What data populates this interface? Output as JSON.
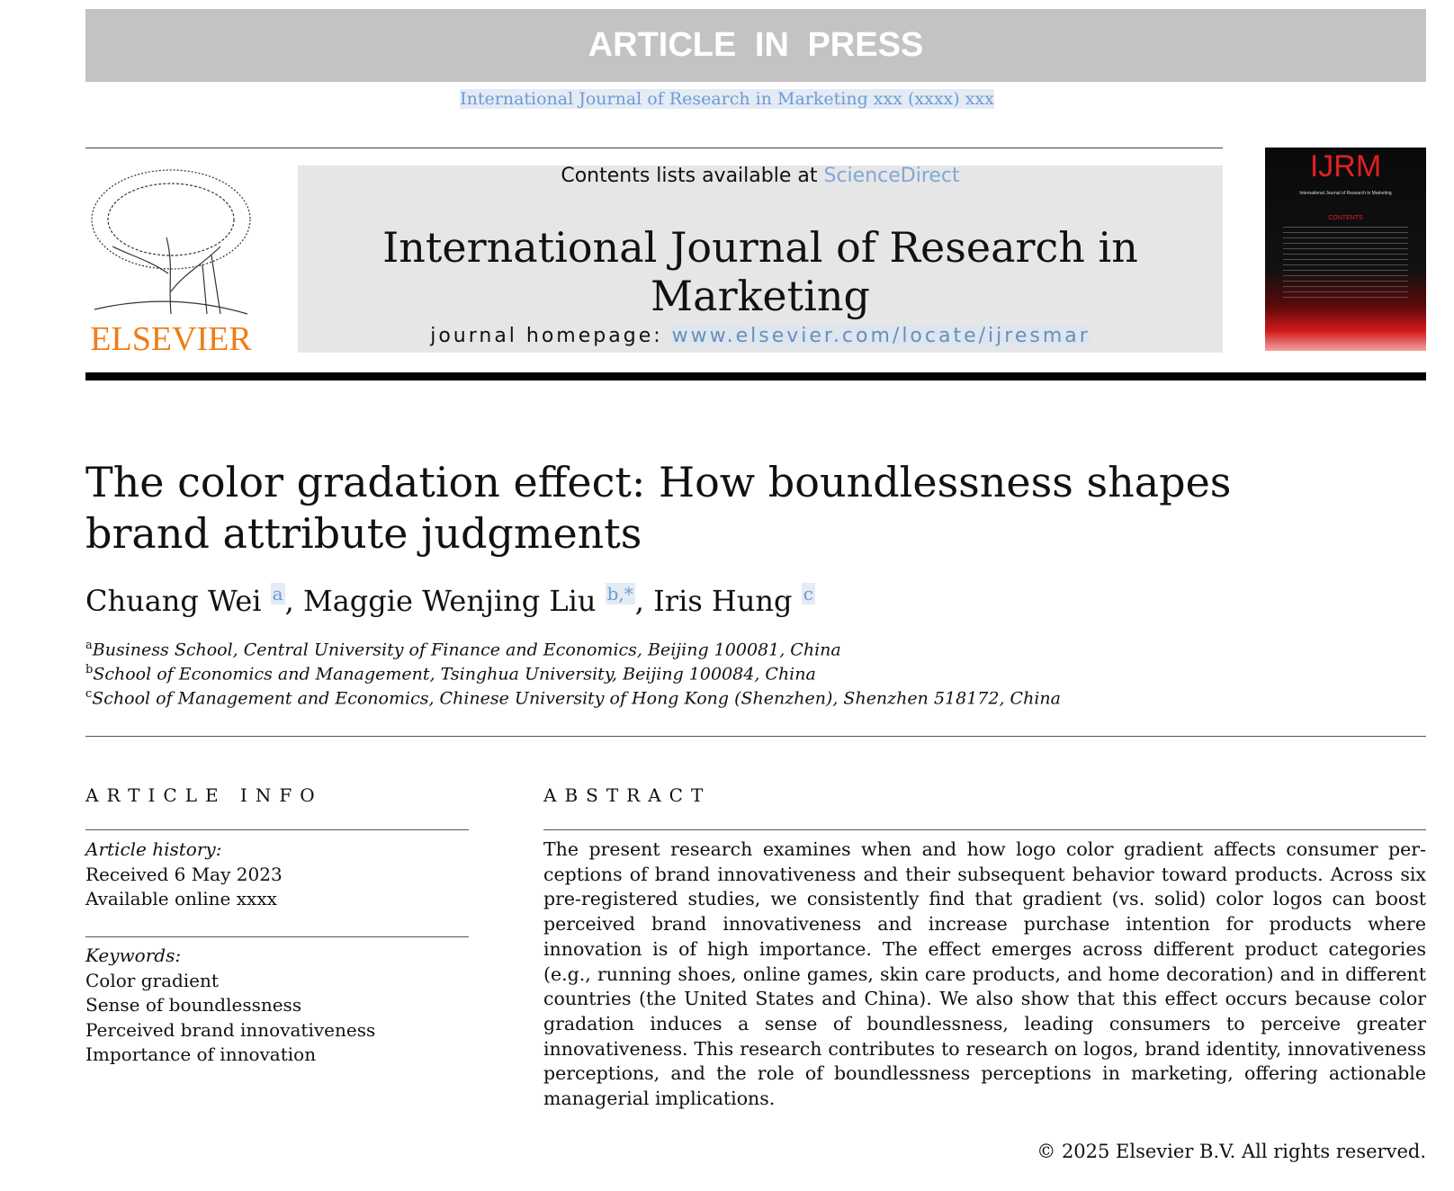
{
  "banner": "ARTICLE IN PRESS",
  "journal_citation": "International Journal of Research in Marketing xxx (xxxx) xxx",
  "header": {
    "contents_prefix": "Contents lists available at ",
    "sciencedirect": "ScienceDirect",
    "journal_title": "International Journal of Research in Marketing",
    "homepage_label": "journal homepage: ",
    "homepage_url": "www.elsevier.com/locate/ijresmar",
    "publisher_logo": "ELSEVIER",
    "cover_title": "IJRM",
    "cover_subtitle": "International Journal of Research in Marketing",
    "cover_contents": "CONTENTS"
  },
  "article": {
    "title": "The color gradation effect: How boundlessness shapes brand attribute judgments",
    "authors": [
      {
        "name": "Chuang Wei",
        "aff": "a"
      },
      {
        "name": "Maggie Wenjing Liu",
        "aff": "b,*"
      },
      {
        "name": "Iris Hung",
        "aff": "c"
      }
    ],
    "affiliations": [
      {
        "mark": "a",
        "text": "Business School, Central University of Finance and Economics, Beijing 100081, China"
      },
      {
        "mark": "b",
        "text": "School of Economics and Management, Tsinghua University, Beijing 100084, China"
      },
      {
        "mark": "c",
        "text": "School of Management and Economics, Chinese University of Hong Kong (Shenzhen), Shenzhen 518172, China"
      }
    ]
  },
  "info": {
    "heading": "ARTICLE INFO",
    "history_label": "Article history:",
    "received": "Received 6 May 2023",
    "available": "Available online xxxx",
    "keywords_label": "Keywords:",
    "keywords": [
      "Color gradient",
      "Sense of boundlessness",
      "Perceived brand innovativeness",
      "Importance of innovation"
    ]
  },
  "abstract": {
    "heading": "ABSTRACT",
    "text": "The present research examines when and how logo color gradient affects consumer per­ceptions of brand innovativeness and their subsequent behavior toward products. Across six pre-registered studies, we consistently find that gradient (vs. solid) color logos can boost perceived brand innovativeness and increase purchase intention for products where innovation is of high importance. The effect emerges across different product categories (e.g., running shoes, online games, skin care products, and home decoration) and in differ­ent countries (the United States and China). We also show that this effect occurs because color gradation induces a sense of boundlessness, leading consumers to perceive greater innovativeness. This research contributes to research on logos, brand identity, innovative­ness perceptions, and the role of boundlessness perceptions in marketing, offering action­able managerial implications.",
    "copyright": "© 2025 Elsevier B.V. All rights reserved."
  }
}
